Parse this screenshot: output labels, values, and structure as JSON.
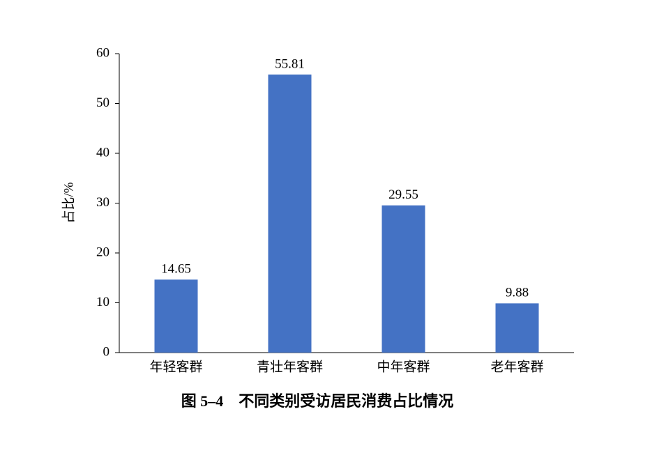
{
  "chart_data": {
    "type": "bar",
    "title": "图 5–4　不同类别受访居民消费占比情况",
    "y_label": "占比/%",
    "categories": [
      "年轻客群",
      "青壮年客群",
      "中年客群",
      "老年客群"
    ],
    "values": [
      14.65,
      55.81,
      29.55,
      9.88
    ],
    "color": "#4472c4",
    "ylim": [
      0,
      60
    ],
    "yticks": [
      0,
      10,
      20,
      30,
      40,
      50,
      60
    ],
    "grid": false
  }
}
